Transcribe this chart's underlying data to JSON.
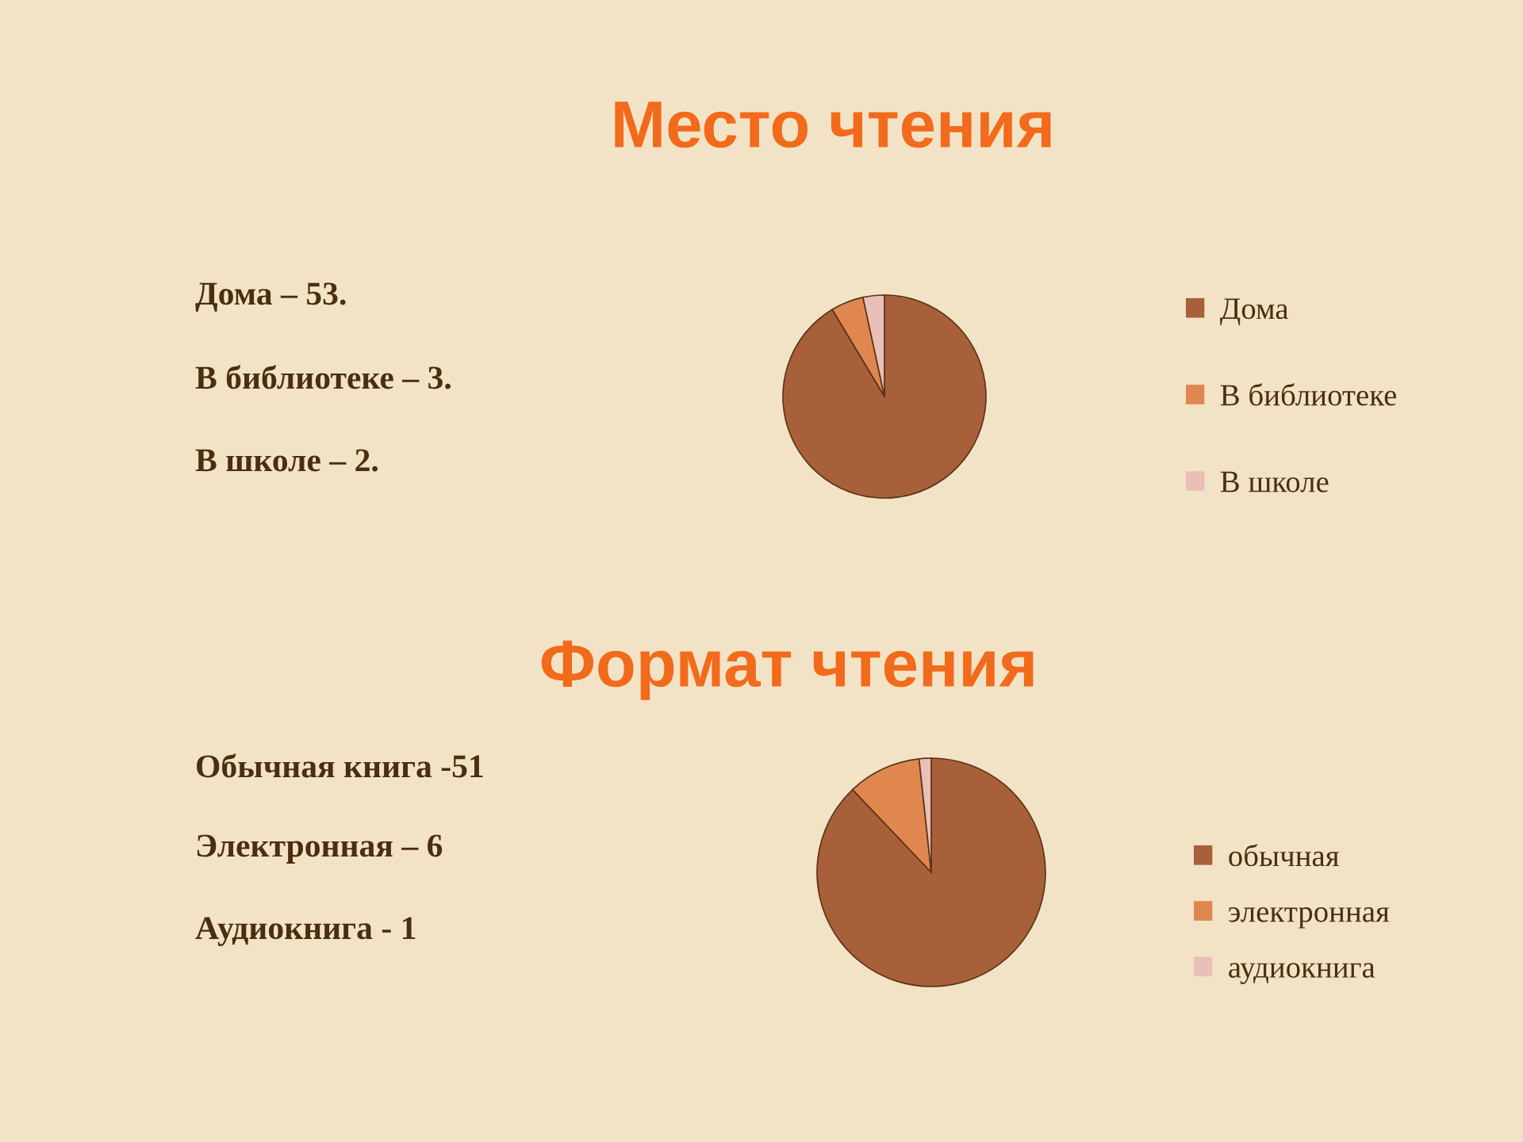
{
  "chart_data": [
    {
      "type": "pie",
      "title": "Место чтения",
      "categories": [
        "Дома",
        "В библиотеке",
        "В школе"
      ],
      "values": [
        91.4,
        5.2,
        3.4
      ],
      "colors": [
        "#a8603a",
        "#e0874f",
        "#e8c0b8"
      ],
      "legend": "right",
      "annotations": [
        "Дома – 53.",
        "В библиотеке – 3.",
        "В школе – 2."
      ]
    },
    {
      "type": "pie",
      "title": "Формат чтения",
      "categories": [
        "обычная",
        "электронная",
        "аудиокнига"
      ],
      "values": [
        87.9,
        10.4,
        1.7
      ],
      "colors": [
        "#a8603a",
        "#e0874f",
        "#e8c0b8"
      ],
      "legend": "right",
      "annotations": [
        "Обычная книга -51",
        "Электронная – 6",
        "Аудиокнига - 1"
      ]
    }
  ]
}
